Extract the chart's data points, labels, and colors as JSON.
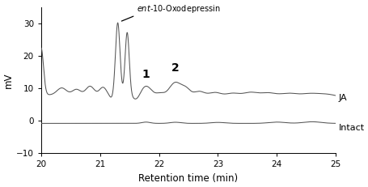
{
  "xlim": [
    20,
    25
  ],
  "ylim": [
    -10,
    35
  ],
  "xlabel": "Retention time (min)",
  "ylabel": "mV",
  "yticks": [
    -10,
    0,
    10,
    20,
    30
  ],
  "xticks": [
    20,
    21,
    22,
    23,
    24,
    25
  ],
  "annotation_text_italic": "ent",
  "annotation_text_rest": "-10-Oxodepressin",
  "label_1": "1",
  "label_2": "2",
  "label_JA": "JA",
  "label_Intact": "Intact",
  "line_color": "#555555",
  "background_color": "#ffffff",
  "figsize": [
    4.55,
    2.31
  ],
  "dpi": 100
}
